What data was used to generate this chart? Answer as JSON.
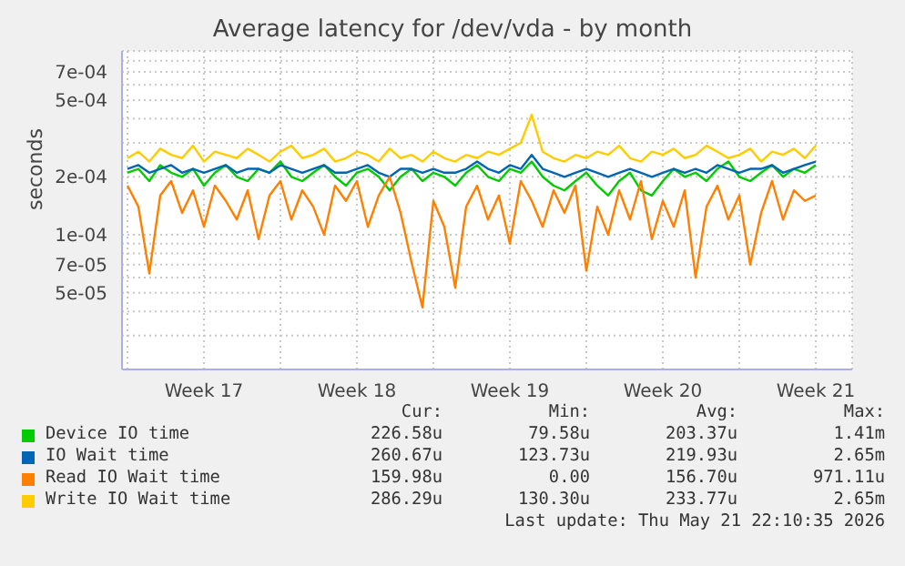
{
  "chart_data": {
    "type": "line",
    "title": "Average latency for /dev/vda - by month",
    "ylabel": "seconds",
    "log": true,
    "grid": true,
    "legend": "bottom",
    "marker": "none",
    "line_style": "solid",
    "xlim": [
      "2026-04-19T18:00",
      "2026-05-23T04:00"
    ],
    "xticks": [
      {
        "value": "2026-04-20T00:00",
        "label": null
      },
      {
        "value": "2026-04-23T12:00",
        "label": "Week 17"
      },
      {
        "value": "2026-04-27T00:00",
        "label": null
      },
      {
        "value": "2026-04-30T12:00",
        "label": "Week 18"
      },
      {
        "value": "2026-05-04T00:00",
        "label": null
      },
      {
        "value": "2026-05-07T12:00",
        "label": "Week 19"
      },
      {
        "value": "2026-05-11T00:00",
        "label": null
      },
      {
        "value": "2026-05-14T12:00",
        "label": "Week 20"
      },
      {
        "value": "2026-05-18T00:00",
        "label": null
      },
      {
        "value": "2026-05-21T12:00",
        "label": "Week 21"
      }
    ],
    "ylim": [
      2e-05,
      0.0009
    ],
    "yticks": [
      {
        "value": 3e-05,
        "label": null
      },
      {
        "value": 4e-05,
        "label": null
      },
      {
        "value": 5e-05,
        "label": "5e-05"
      },
      {
        "value": 6e-05,
        "label": null
      },
      {
        "value": 7e-05,
        "label": "7e-05"
      },
      {
        "value": 8e-05,
        "label": null
      },
      {
        "value": 9e-05,
        "label": null
      },
      {
        "value": 0.0001,
        "label": "1e-04"
      },
      {
        "value": 0.0002,
        "label": "2e-04"
      },
      {
        "value": 0.0003,
        "label": null
      },
      {
        "value": 0.0004,
        "label": null
      },
      {
        "value": 0.0005,
        "label": "5e-04"
      },
      {
        "value": 0.0006,
        "label": null
      },
      {
        "value": 0.0007,
        "label": "7e-04"
      },
      {
        "value": 0.0008,
        "label": null
      }
    ],
    "x": [
      "2026-04-20T00:00",
      "2026-04-20T12:00",
      "2026-04-21T00:00",
      "2026-04-21T12:00",
      "2026-04-22T00:00",
      "2026-04-22T12:00",
      "2026-04-23T00:00",
      "2026-04-23T12:00",
      "2026-04-24T00:00",
      "2026-04-24T12:00",
      "2026-04-25T00:00",
      "2026-04-25T12:00",
      "2026-04-26T00:00",
      "2026-04-26T12:00",
      "2026-04-27T00:00",
      "2026-04-27T12:00",
      "2026-04-28T00:00",
      "2026-04-28T12:00",
      "2026-04-29T00:00",
      "2026-04-29T12:00",
      "2026-04-30T00:00",
      "2026-04-30T12:00",
      "2026-05-01T00:00",
      "2026-05-01T12:00",
      "2026-05-02T00:00",
      "2026-05-02T12:00",
      "2026-05-03T00:00",
      "2026-05-03T12:00",
      "2026-05-04T00:00",
      "2026-05-04T12:00",
      "2026-05-05T00:00",
      "2026-05-05T12:00",
      "2026-05-06T00:00",
      "2026-05-06T12:00",
      "2026-05-07T00:00",
      "2026-05-07T12:00",
      "2026-05-08T00:00",
      "2026-05-08T12:00",
      "2026-05-09T00:00",
      "2026-05-09T12:00",
      "2026-05-10T00:00",
      "2026-05-10T12:00",
      "2026-05-11T00:00",
      "2026-05-11T12:00",
      "2026-05-12T00:00",
      "2026-05-12T12:00",
      "2026-05-13T00:00",
      "2026-05-13T12:00",
      "2026-05-14T00:00",
      "2026-05-14T12:00",
      "2026-05-15T00:00",
      "2026-05-15T12:00",
      "2026-05-16T00:00",
      "2026-05-16T12:00",
      "2026-05-17T00:00",
      "2026-05-17T12:00",
      "2026-05-18T00:00",
      "2026-05-18T12:00",
      "2026-05-19T00:00",
      "2026-05-19T12:00",
      "2026-05-20T00:00",
      "2026-05-20T12:00",
      "2026-05-21T00:00",
      "2026-05-21T12:00"
    ],
    "series": [
      {
        "name": "Device IO time",
        "color": "#00cc00",
        "values": [
          0.00021,
          0.00022,
          0.00019,
          0.00023,
          0.00021,
          0.0002,
          0.00022,
          0.00018,
          0.00021,
          0.00023,
          0.0002,
          0.00019,
          0.00022,
          0.00021,
          0.00024,
          0.0002,
          0.00019,
          0.00021,
          0.00023,
          0.0002,
          0.00018,
          0.00021,
          0.00022,
          0.0002,
          0.00017,
          0.0002,
          0.00022,
          0.00019,
          0.00021,
          0.0002,
          0.00018,
          0.00021,
          0.00023,
          0.0002,
          0.00019,
          0.00022,
          0.00021,
          0.00024,
          0.0002,
          0.00018,
          0.00017,
          0.00019,
          0.00021,
          0.00018,
          0.00016,
          0.00019,
          0.00021,
          0.00017,
          0.00016,
          0.00019,
          0.00022,
          0.0002,
          0.00021,
          0.00019,
          0.00022,
          0.00024,
          0.0002,
          0.00019,
          0.00021,
          0.00023,
          0.0002,
          0.00022,
          0.00021,
          0.00023
        ]
      },
      {
        "name": "IO Wait time",
        "color": "#0066b3",
        "values": [
          0.00022,
          0.00023,
          0.00021,
          0.00022,
          0.00023,
          0.00021,
          0.00022,
          0.00021,
          0.00022,
          0.00023,
          0.00021,
          0.00022,
          0.00022,
          0.00021,
          0.00023,
          0.00022,
          0.00021,
          0.00022,
          0.00023,
          0.00021,
          0.00021,
          0.00022,
          0.00023,
          0.00021,
          0.0002,
          0.00022,
          0.00022,
          0.00021,
          0.00022,
          0.00021,
          0.00021,
          0.00022,
          0.00024,
          0.00022,
          0.00021,
          0.00023,
          0.00022,
          0.00026,
          0.00022,
          0.00021,
          0.0002,
          0.00021,
          0.00022,
          0.00021,
          0.0002,
          0.00021,
          0.00022,
          0.00021,
          0.0002,
          0.00021,
          0.00022,
          0.00021,
          0.00022,
          0.00021,
          0.00023,
          0.00022,
          0.00021,
          0.00022,
          0.00022,
          0.00023,
          0.00021,
          0.00022,
          0.00023,
          0.00024
        ]
      },
      {
        "name": "Read IO Wait time",
        "color": "#ff8000",
        "values": [
          0.00018,
          0.00014,
          6.3e-05,
          0.00016,
          0.00019,
          0.00013,
          0.00017,
          0.00011,
          0.00018,
          0.00015,
          0.00012,
          0.00017,
          9.5e-05,
          0.00016,
          0.00019,
          0.00012,
          0.00017,
          0.00014,
          0.0001,
          0.00018,
          0.00015,
          0.00019,
          0.00011,
          0.00016,
          0.0002,
          0.00013,
          7.2e-05,
          4.2e-05,
          0.00015,
          0.00011,
          5.3e-05,
          0.00014,
          0.00018,
          0.00012,
          0.00016,
          9e-05,
          0.00019,
          0.00015,
          0.00011,
          0.00017,
          0.00013,
          0.00018,
          6.5e-05,
          0.00014,
          0.0001,
          0.00017,
          0.00012,
          0.00019,
          9.5e-05,
          0.00015,
          0.00011,
          0.00017,
          6e-05,
          0.00014,
          0.00018,
          0.00012,
          0.00016,
          7e-05,
          0.00013,
          0.00019,
          0.00012,
          0.00017,
          0.00015,
          0.00016
        ]
      },
      {
        "name": "Write IO Wait time",
        "color": "#ffcc00",
        "values": [
          0.00025,
          0.00027,
          0.00024,
          0.00028,
          0.00026,
          0.00025,
          0.00029,
          0.00024,
          0.00027,
          0.00026,
          0.00025,
          0.00028,
          0.00026,
          0.00024,
          0.00027,
          0.00029,
          0.00025,
          0.00026,
          0.00028,
          0.00024,
          0.00025,
          0.00027,
          0.00026,
          0.00024,
          0.00028,
          0.00025,
          0.00026,
          0.00024,
          0.00027,
          0.00025,
          0.00024,
          0.00026,
          0.00025,
          0.00027,
          0.00026,
          0.00028,
          0.0003,
          0.00042,
          0.00027,
          0.00025,
          0.00024,
          0.00026,
          0.00025,
          0.00027,
          0.00026,
          0.00029,
          0.00025,
          0.00024,
          0.00027,
          0.00026,
          0.00028,
          0.00025,
          0.00026,
          0.00029,
          0.00027,
          0.00025,
          0.00026,
          0.00028,
          0.00024,
          0.00027,
          0.00026,
          0.00028,
          0.00025,
          0.00029
        ]
      }
    ],
    "annotations": [
      "Cur:",
      "Min:",
      "Avg:",
      "Max:",
      "226.58u",
      "79.58u",
      "203.37u",
      "1.41m",
      "260.67u",
      "123.73u",
      "219.93u",
      "2.65m",
      "159.98u",
      "0.00",
      "156.70u",
      "971.11u",
      "286.29u",
      "130.30u",
      "233.77u",
      "2.65m",
      "Last update: Thu May 21 22:10:35 2026"
    ]
  }
}
